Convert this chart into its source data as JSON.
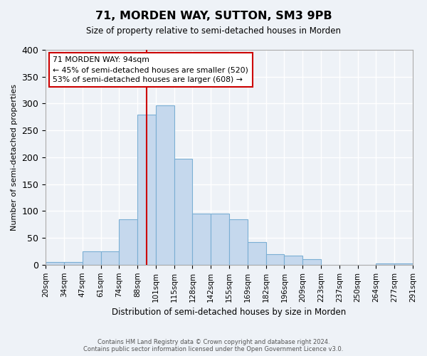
{
  "title": "71, MORDEN WAY, SUTTON, SM3 9PB",
  "subtitle": "Size of property relative to semi-detached houses in Morden",
  "xlabel": "Distribution of semi-detached houses by size in Morden",
  "ylabel": "Number of semi-detached properties",
  "bar_color": "#c5d8ed",
  "bar_edge_color": "#7bafd4",
  "tick_labels": [
    "20sqm",
    "34sqm",
    "47sqm",
    "61sqm",
    "74sqm",
    "88sqm",
    "101sqm",
    "115sqm",
    "128sqm",
    "142sqm",
    "155sqm",
    "169sqm",
    "182sqm",
    "196sqm",
    "209sqm",
    "223sqm",
    "237sqm",
    "250sqm",
    "264sqm",
    "277sqm",
    "291sqm"
  ],
  "values": [
    5,
    5,
    25,
    25,
    85,
    280,
    297,
    197,
    95,
    95,
    85,
    42,
    20,
    17,
    10,
    0,
    0,
    0,
    2,
    2
  ],
  "ylim": [
    0,
    400
  ],
  "yticks": [
    0,
    50,
    100,
    150,
    200,
    250,
    300,
    350,
    400
  ],
  "vline_x": 5.5,
  "annotation_title": "71 MORDEN WAY: 94sqm",
  "annotation_line1": "← 45% of semi-detached houses are smaller (520)",
  "annotation_line2": "53% of semi-detached houses are larger (608) →",
  "vline_color": "#cc0000",
  "box_edge_color": "#cc0000",
  "footer1": "Contains HM Land Registry data © Crown copyright and database right 2024.",
  "footer2": "Contains public sector information licensed under the Open Government Licence v3.0.",
  "background_color": "#eef2f7",
  "grid_color": "#ffffff"
}
